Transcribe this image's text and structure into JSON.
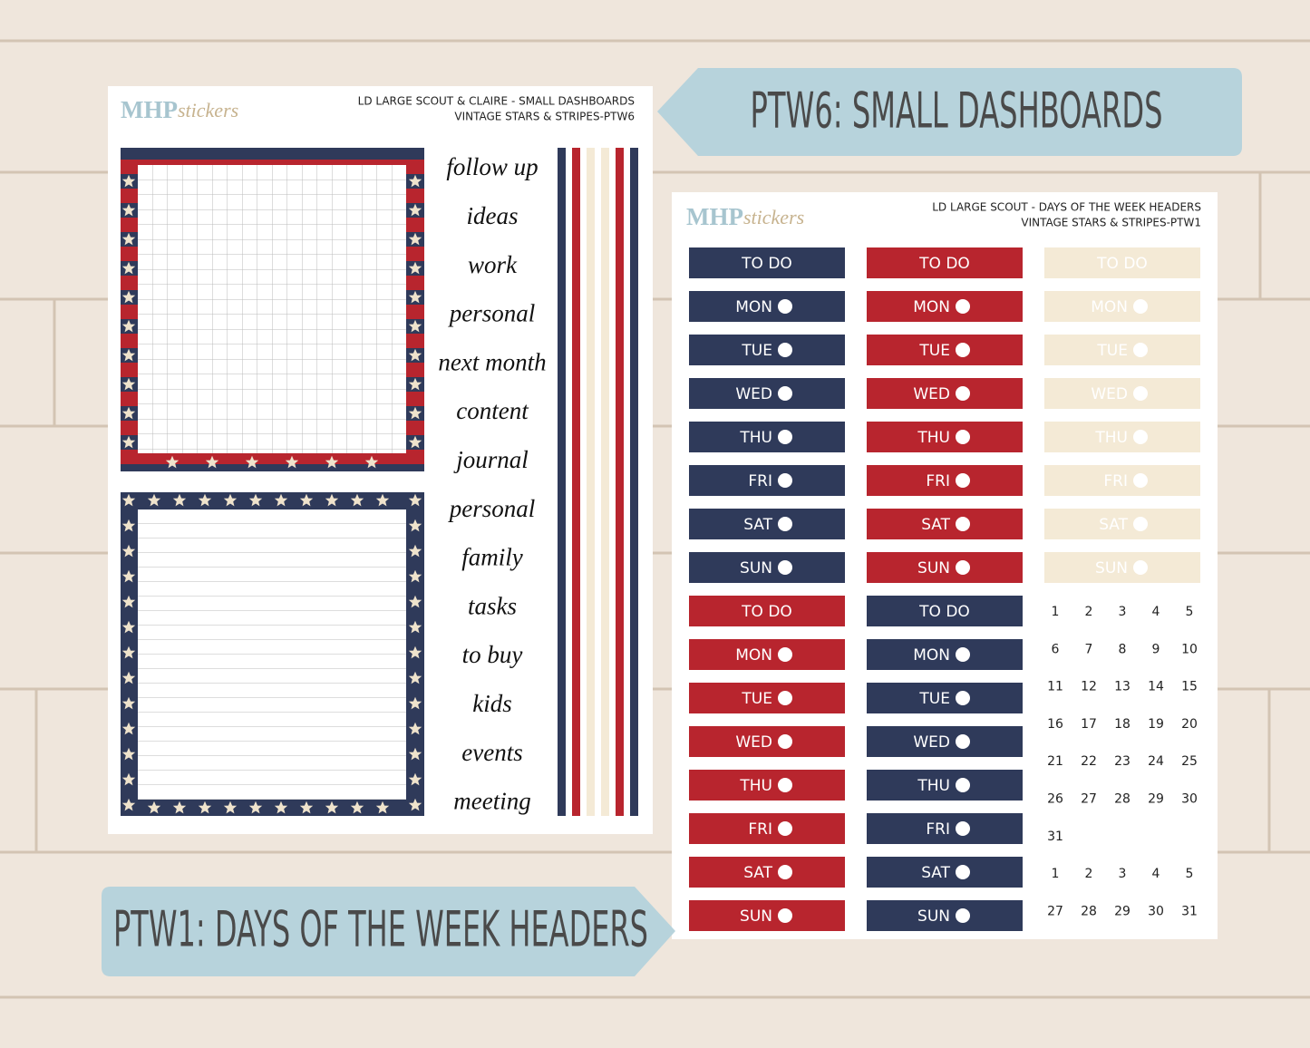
{
  "banners": {
    "top": "PTW6: SMALL DASHBOARDS",
    "bottom": "PTW1: DAYS OF THE WEEK HEADERS"
  },
  "left_sheet": {
    "logo": {
      "brand": "MHP",
      "sub": "stickers"
    },
    "header": [
      "LD LARGE SCOUT & CLAIRE - SMALL DASHBOARDS",
      "VINTAGE STARS & STRIPES-PTW6"
    ],
    "words": [
      "follow up",
      "ideas",
      "work",
      "personal",
      "next month",
      "content",
      "journal",
      "personal",
      "family",
      "tasks",
      "to buy",
      "kids",
      "events",
      "meeting"
    ]
  },
  "right_sheet": {
    "logo": {
      "brand": "MHP",
      "sub": "stickers"
    },
    "header": [
      "LD LARGE SCOUT - DAYS OF THE WEEK HEADERS",
      "VINTAGE STARS & STRIPES-PTW1"
    ],
    "blocks": [
      {
        "labels": [
          "TO DO",
          "MON",
          "TUE",
          "WED",
          "THU",
          "FRI",
          "SAT",
          "SUN"
        ]
      },
      {
        "labels": [
          "TO DO",
          "MON",
          "TUE",
          "WED",
          "THU",
          "FRI",
          "SAT",
          "SUN"
        ]
      },
      {
        "labels": [
          "TO DO",
          "MON",
          "TUE",
          "WED",
          "THU",
          "FRI",
          "SAT",
          "SUN"
        ]
      },
      {
        "labels": [
          "TO DO",
          "MON",
          "TUE",
          "WED",
          "THU",
          "FRI",
          "SAT",
          "SUN"
        ]
      },
      {
        "labels": [
          "TO DO",
          "MON",
          "TUE",
          "WED",
          "THU",
          "FRI",
          "SAT",
          "SUN"
        ]
      }
    ],
    "dates": [
      [
        "1",
        "2",
        "3",
        "4",
        "5"
      ],
      [
        "6",
        "7",
        "8",
        "9",
        "10"
      ],
      [
        "11",
        "12",
        "13",
        "14",
        "15"
      ],
      [
        "16",
        "17",
        "18",
        "19",
        "20"
      ],
      [
        "21",
        "22",
        "23",
        "24",
        "25"
      ],
      [
        "26",
        "27",
        "28",
        "29",
        "30"
      ],
      [
        "31"
      ],
      [
        "1",
        "2",
        "3",
        "4",
        "5"
      ],
      [
        "27",
        "28",
        "29",
        "30",
        "31"
      ]
    ]
  }
}
